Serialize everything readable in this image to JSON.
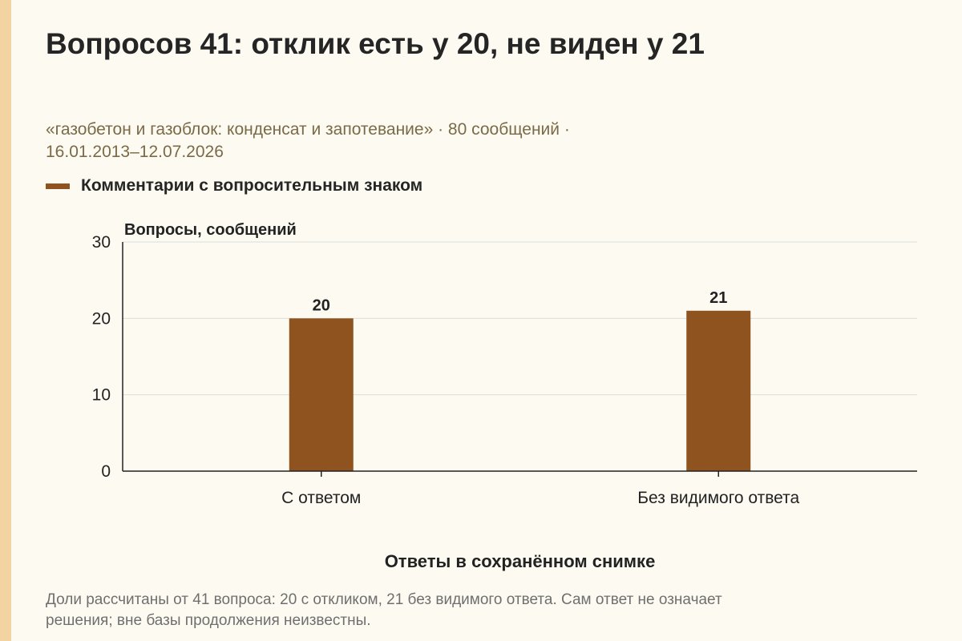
{
  "title": "Вопросов 41: отклик есть у 20, не виден у 21",
  "subtitle_line1": "«газобетон и газоблок: конденсат и запотевание» · 80 сообщений ·",
  "subtitle_line2": "16.01.2013–12.07.2026",
  "legend": {
    "label": "Комментарии с вопросительным знаком",
    "color": "#8f531f"
  },
  "footnote_line1": "Доли рассчитаны от 41 вопроса: 20 с откликом, 21 без видимого ответа. Сам ответ не означает",
  "footnote_line2": "решения; вне базы продолжения неизвестны.",
  "colors": {
    "background": "#fdfbf1",
    "accent_bar": "#f4d3a2",
    "bar": "#8f531f",
    "grid": "#dcdcdc",
    "axis": "#222222"
  },
  "chart_data": {
    "type": "bar",
    "categories": [
      "С ответом",
      "Без видимого ответа"
    ],
    "series": [
      {
        "name": "Комментарии с вопросительным знаком",
        "values": [
          20,
          21
        ]
      }
    ],
    "ylabel": "Вопросы, сообщений",
    "xlabel": "Ответы в сохранённом снимке",
    "ylim": [
      0,
      30
    ],
    "yticks": [
      0,
      10,
      20,
      30
    ],
    "data_labels": [
      "20",
      "21"
    ],
    "grid": true,
    "legend_position": "top-left"
  }
}
